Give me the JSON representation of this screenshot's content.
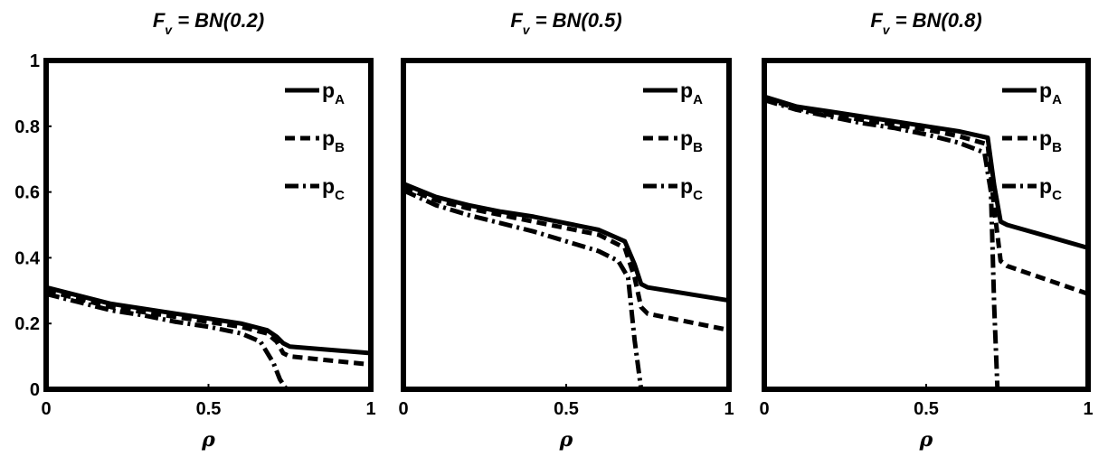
{
  "chart_data": [
    {
      "type": "line",
      "title": "F_v = BN(0.2)",
      "title_parts": {
        "main": "F",
        "sub": "v",
        "rest": " = BN(0.2)"
      },
      "xlabel": "ρ",
      "ylabel": "",
      "xlim": [
        0,
        1
      ],
      "ylim": [
        0,
        1
      ],
      "xticks": [
        "0",
        "0.5",
        "1"
      ],
      "yticks": [
        "0",
        "0.2",
        "0.4",
        "0.6",
        "0.8",
        "1"
      ],
      "legend_position": "top-right",
      "grid": false,
      "series": [
        {
          "name": "pA",
          "label_main": "p",
          "label_sub": "A",
          "style": "solid",
          "x": [
            0,
            0.1,
            0.2,
            0.3,
            0.4,
            0.5,
            0.6,
            0.68,
            0.71,
            0.73,
            0.75,
            1.0
          ],
          "y": [
            0.31,
            0.285,
            0.26,
            0.245,
            0.23,
            0.215,
            0.2,
            0.18,
            0.16,
            0.14,
            0.13,
            0.11
          ]
        },
        {
          "name": "pB",
          "label_main": "p",
          "label_sub": "B",
          "style": "dashed",
          "x": [
            0,
            0.1,
            0.2,
            0.3,
            0.4,
            0.5,
            0.6,
            0.68,
            0.71,
            0.73,
            0.75,
            1.0
          ],
          "y": [
            0.3,
            0.275,
            0.25,
            0.235,
            0.22,
            0.205,
            0.19,
            0.17,
            0.145,
            0.11,
            0.1,
            0.075
          ]
        },
        {
          "name": "pC",
          "label_main": "p",
          "label_sub": "C",
          "style": "dashdot",
          "x": [
            0,
            0.1,
            0.2,
            0.3,
            0.4,
            0.5,
            0.6,
            0.66,
            0.7,
            0.72,
            0.74,
            1.0
          ],
          "y": [
            0.29,
            0.265,
            0.24,
            0.225,
            0.205,
            0.19,
            0.17,
            0.145,
            0.08,
            0.03,
            0.0,
            0.0
          ]
        }
      ]
    },
    {
      "type": "line",
      "title": "F_v = BN(0.5)",
      "title_parts": {
        "main": "F",
        "sub": "v",
        "rest": " = BN(0.5)"
      },
      "xlabel": "ρ",
      "ylabel": "",
      "xlim": [
        0,
        1
      ],
      "ylim": [
        0,
        1
      ],
      "xticks": [
        "0",
        "0.5",
        "1"
      ],
      "yticks": [],
      "legend_position": "top-right",
      "grid": false,
      "series": [
        {
          "name": "pA",
          "label_main": "p",
          "label_sub": "A",
          "style": "solid",
          "x": [
            0,
            0.1,
            0.2,
            0.3,
            0.4,
            0.5,
            0.6,
            0.68,
            0.71,
            0.73,
            0.75,
            1.0
          ],
          "y": [
            0.625,
            0.585,
            0.56,
            0.54,
            0.525,
            0.505,
            0.485,
            0.45,
            0.38,
            0.32,
            0.31,
            0.27
          ]
        },
        {
          "name": "pB",
          "label_main": "p",
          "label_sub": "B",
          "style": "dashed",
          "x": [
            0,
            0.1,
            0.2,
            0.3,
            0.4,
            0.5,
            0.6,
            0.68,
            0.71,
            0.73,
            0.75,
            1.0
          ],
          "y": [
            0.615,
            0.575,
            0.55,
            0.53,
            0.51,
            0.49,
            0.47,
            0.43,
            0.34,
            0.25,
            0.23,
            0.18
          ]
        },
        {
          "name": "pC",
          "label_main": "p",
          "label_sub": "C",
          "style": "dashdot",
          "x": [
            0,
            0.1,
            0.2,
            0.3,
            0.4,
            0.5,
            0.6,
            0.66,
            0.69,
            0.71,
            0.73,
            1.0
          ],
          "y": [
            0.605,
            0.56,
            0.53,
            0.505,
            0.48,
            0.45,
            0.42,
            0.39,
            0.34,
            0.15,
            0.0,
            0.0
          ]
        }
      ]
    },
    {
      "type": "line",
      "title": "F_v = BN(0.8)",
      "title_parts": {
        "main": "F",
        "sub": "v",
        "rest": " = BN(0.8)"
      },
      "xlabel": "ρ",
      "ylabel": "",
      "xlim": [
        0,
        1
      ],
      "ylim": [
        0,
        1
      ],
      "xticks": [
        "0",
        "0.5",
        "1"
      ],
      "yticks": [],
      "legend_position": "top-right",
      "grid": false,
      "series": [
        {
          "name": "pA",
          "label_main": "p",
          "label_sub": "A",
          "style": "solid",
          "x": [
            0,
            0.1,
            0.2,
            0.3,
            0.4,
            0.5,
            0.6,
            0.69,
            0.71,
            0.73,
            0.75,
            1.0
          ],
          "y": [
            0.89,
            0.86,
            0.845,
            0.83,
            0.815,
            0.8,
            0.785,
            0.765,
            0.62,
            0.51,
            0.5,
            0.43
          ]
        },
        {
          "name": "pB",
          "label_main": "p",
          "label_sub": "B",
          "style": "dashed",
          "x": [
            0,
            0.1,
            0.2,
            0.3,
            0.4,
            0.5,
            0.6,
            0.69,
            0.71,
            0.73,
            0.75,
            1.0
          ],
          "y": [
            0.885,
            0.855,
            0.835,
            0.82,
            0.805,
            0.79,
            0.77,
            0.745,
            0.55,
            0.39,
            0.375,
            0.29
          ]
        },
        {
          "name": "pC",
          "label_main": "p",
          "label_sub": "C",
          "style": "dashdot",
          "x": [
            0,
            0.1,
            0.2,
            0.3,
            0.4,
            0.5,
            0.6,
            0.68,
            0.7,
            0.71,
            0.72,
            1.0
          ],
          "y": [
            0.88,
            0.85,
            0.83,
            0.81,
            0.795,
            0.775,
            0.75,
            0.72,
            0.6,
            0.25,
            0.0,
            0.0
          ]
        }
      ]
    }
  ]
}
